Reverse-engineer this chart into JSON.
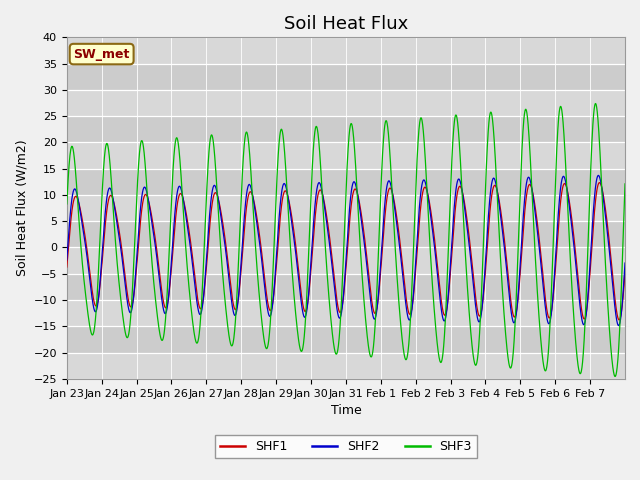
{
  "title": "Soil Heat Flux",
  "ylabel": "Soil Heat Flux (W/m2)",
  "xlabel": "Time",
  "ylim": [
    -25,
    40
  ],
  "yticks": [
    -25,
    -20,
    -15,
    -10,
    -5,
    0,
    5,
    10,
    15,
    20,
    25,
    30,
    35,
    40
  ],
  "x_tick_labels": [
    "Jan 23",
    "Jan 24",
    "Jan 25",
    "Jan 26",
    "Jan 27",
    "Jan 28",
    "Jan 29",
    "Jan 30",
    "Jan 31",
    "Feb 1",
    "Feb 2",
    "Feb 3",
    "Feb 4",
    "Feb 5",
    "Feb 6",
    "Feb 7"
  ],
  "legend_label": "SW_met",
  "series_labels": [
    "SHF1",
    "SHF2",
    "SHF3"
  ],
  "series_colors": [
    "#cc0000",
    "#0000cc",
    "#00bb00"
  ],
  "title_fontsize": 13,
  "axis_label_fontsize": 9,
  "tick_fontsize": 8,
  "legend_fontsize": 9
}
